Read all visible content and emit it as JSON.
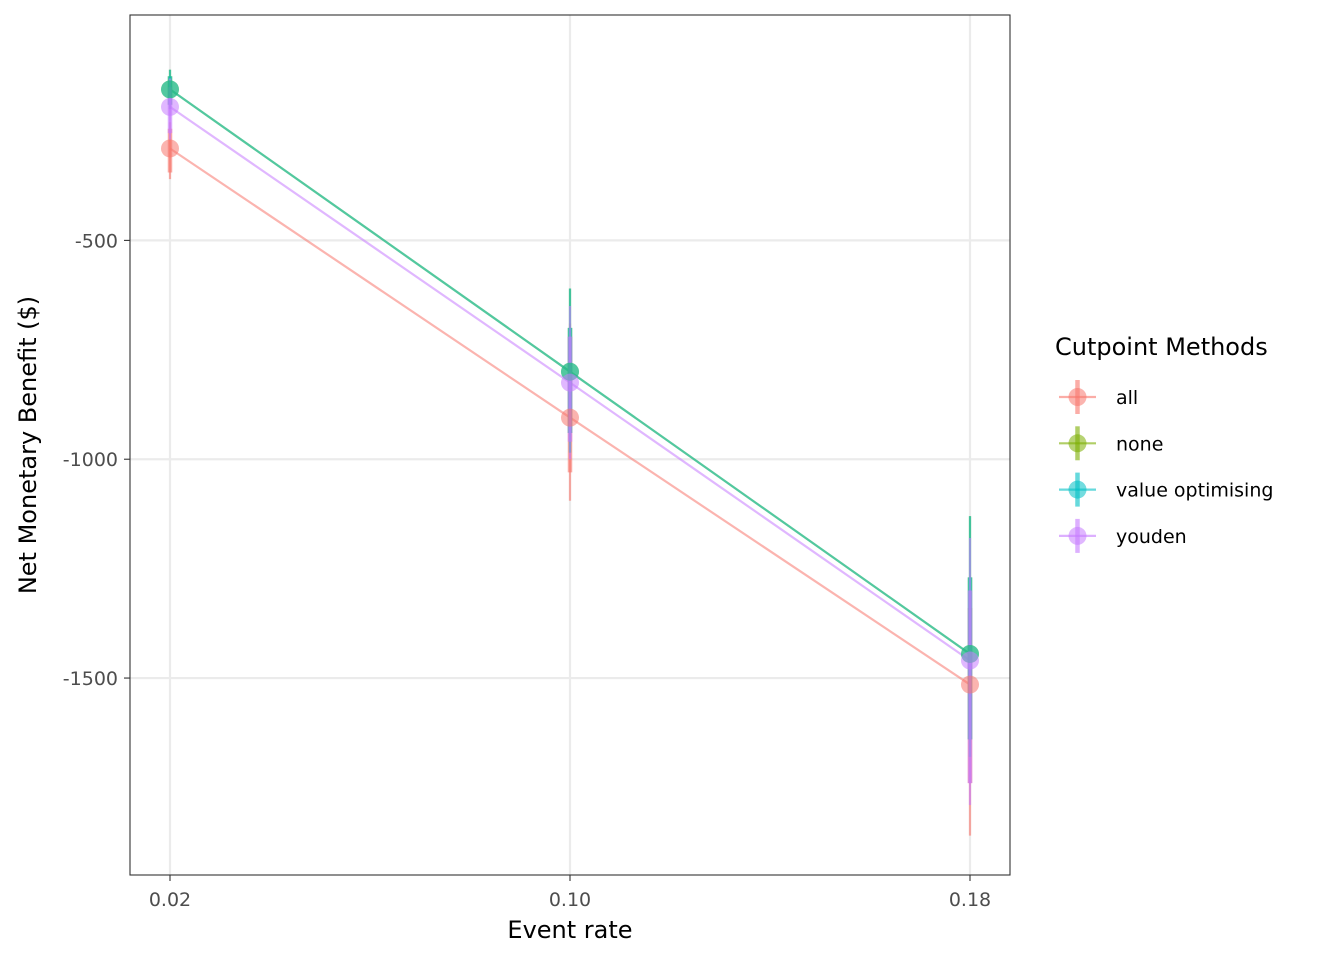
{
  "chart_data": {
    "type": "line",
    "title": "",
    "xlabel": "Event rate",
    "ylabel": "Net Monetary Benefit ($)",
    "x": [
      0.02,
      0.1,
      0.18
    ],
    "x_tick_labels": [
      "0.02",
      "0.10",
      "0.18"
    ],
    "xlim": [
      0.012,
      0.188
    ],
    "ylim": [
      -1950,
      15
    ],
    "y_ticks": [
      -500,
      -1000,
      -1500
    ],
    "y_tick_labels": [
      "-500",
      "-1000",
      "-1500"
    ],
    "grid": true,
    "legend": {
      "title": "Cutpoint Methods",
      "position": "right"
    },
    "series": [
      {
        "name": "all",
        "color": "#F8766D",
        "values": [
          -290,
          -905,
          -1515
        ],
        "error_outer": [
          [
            -360,
            -230
          ],
          [
            -1095,
            -690
          ],
          [
            -1860,
            -1290
          ]
        ],
        "error_inner": [
          [
            -345,
            -245
          ],
          [
            -1030,
            -720
          ],
          [
            -1740,
            -1340
          ]
        ]
      },
      {
        "name": "none",
        "color": "#7CAE00",
        "values": [
          -155,
          -800,
          -1445
        ],
        "error_outer": [
          [
            -200,
            -110
          ],
          [
            -985,
            -610
          ],
          [
            -1680,
            -1130
          ]
        ],
        "error_inner": [
          [
            -190,
            -125
          ],
          [
            -940,
            -700
          ],
          [
            -1640,
            -1270
          ]
        ]
      },
      {
        "name": "value optimising",
        "color": "#00BFC4",
        "values": [
          -155,
          -800,
          -1445
        ],
        "error_outer": [
          [
            -200,
            -110
          ],
          [
            -985,
            -610
          ],
          [
            -1680,
            -1130
          ]
        ],
        "error_inner": [
          [
            -190,
            -125
          ],
          [
            -940,
            -700
          ],
          [
            -1640,
            -1270
          ]
        ]
      },
      {
        "name": "youden",
        "color": "#C77CFF",
        "values": [
          -195,
          -825,
          -1460
        ],
        "error_outer": [
          [
            -270,
            -130
          ],
          [
            -1000,
            -650
          ],
          [
            -1790,
            -1180
          ]
        ],
        "error_inner": [
          [
            -255,
            -150
          ],
          [
            -960,
            -720
          ],
          [
            -1740,
            -1300
          ]
        ]
      }
    ]
  }
}
